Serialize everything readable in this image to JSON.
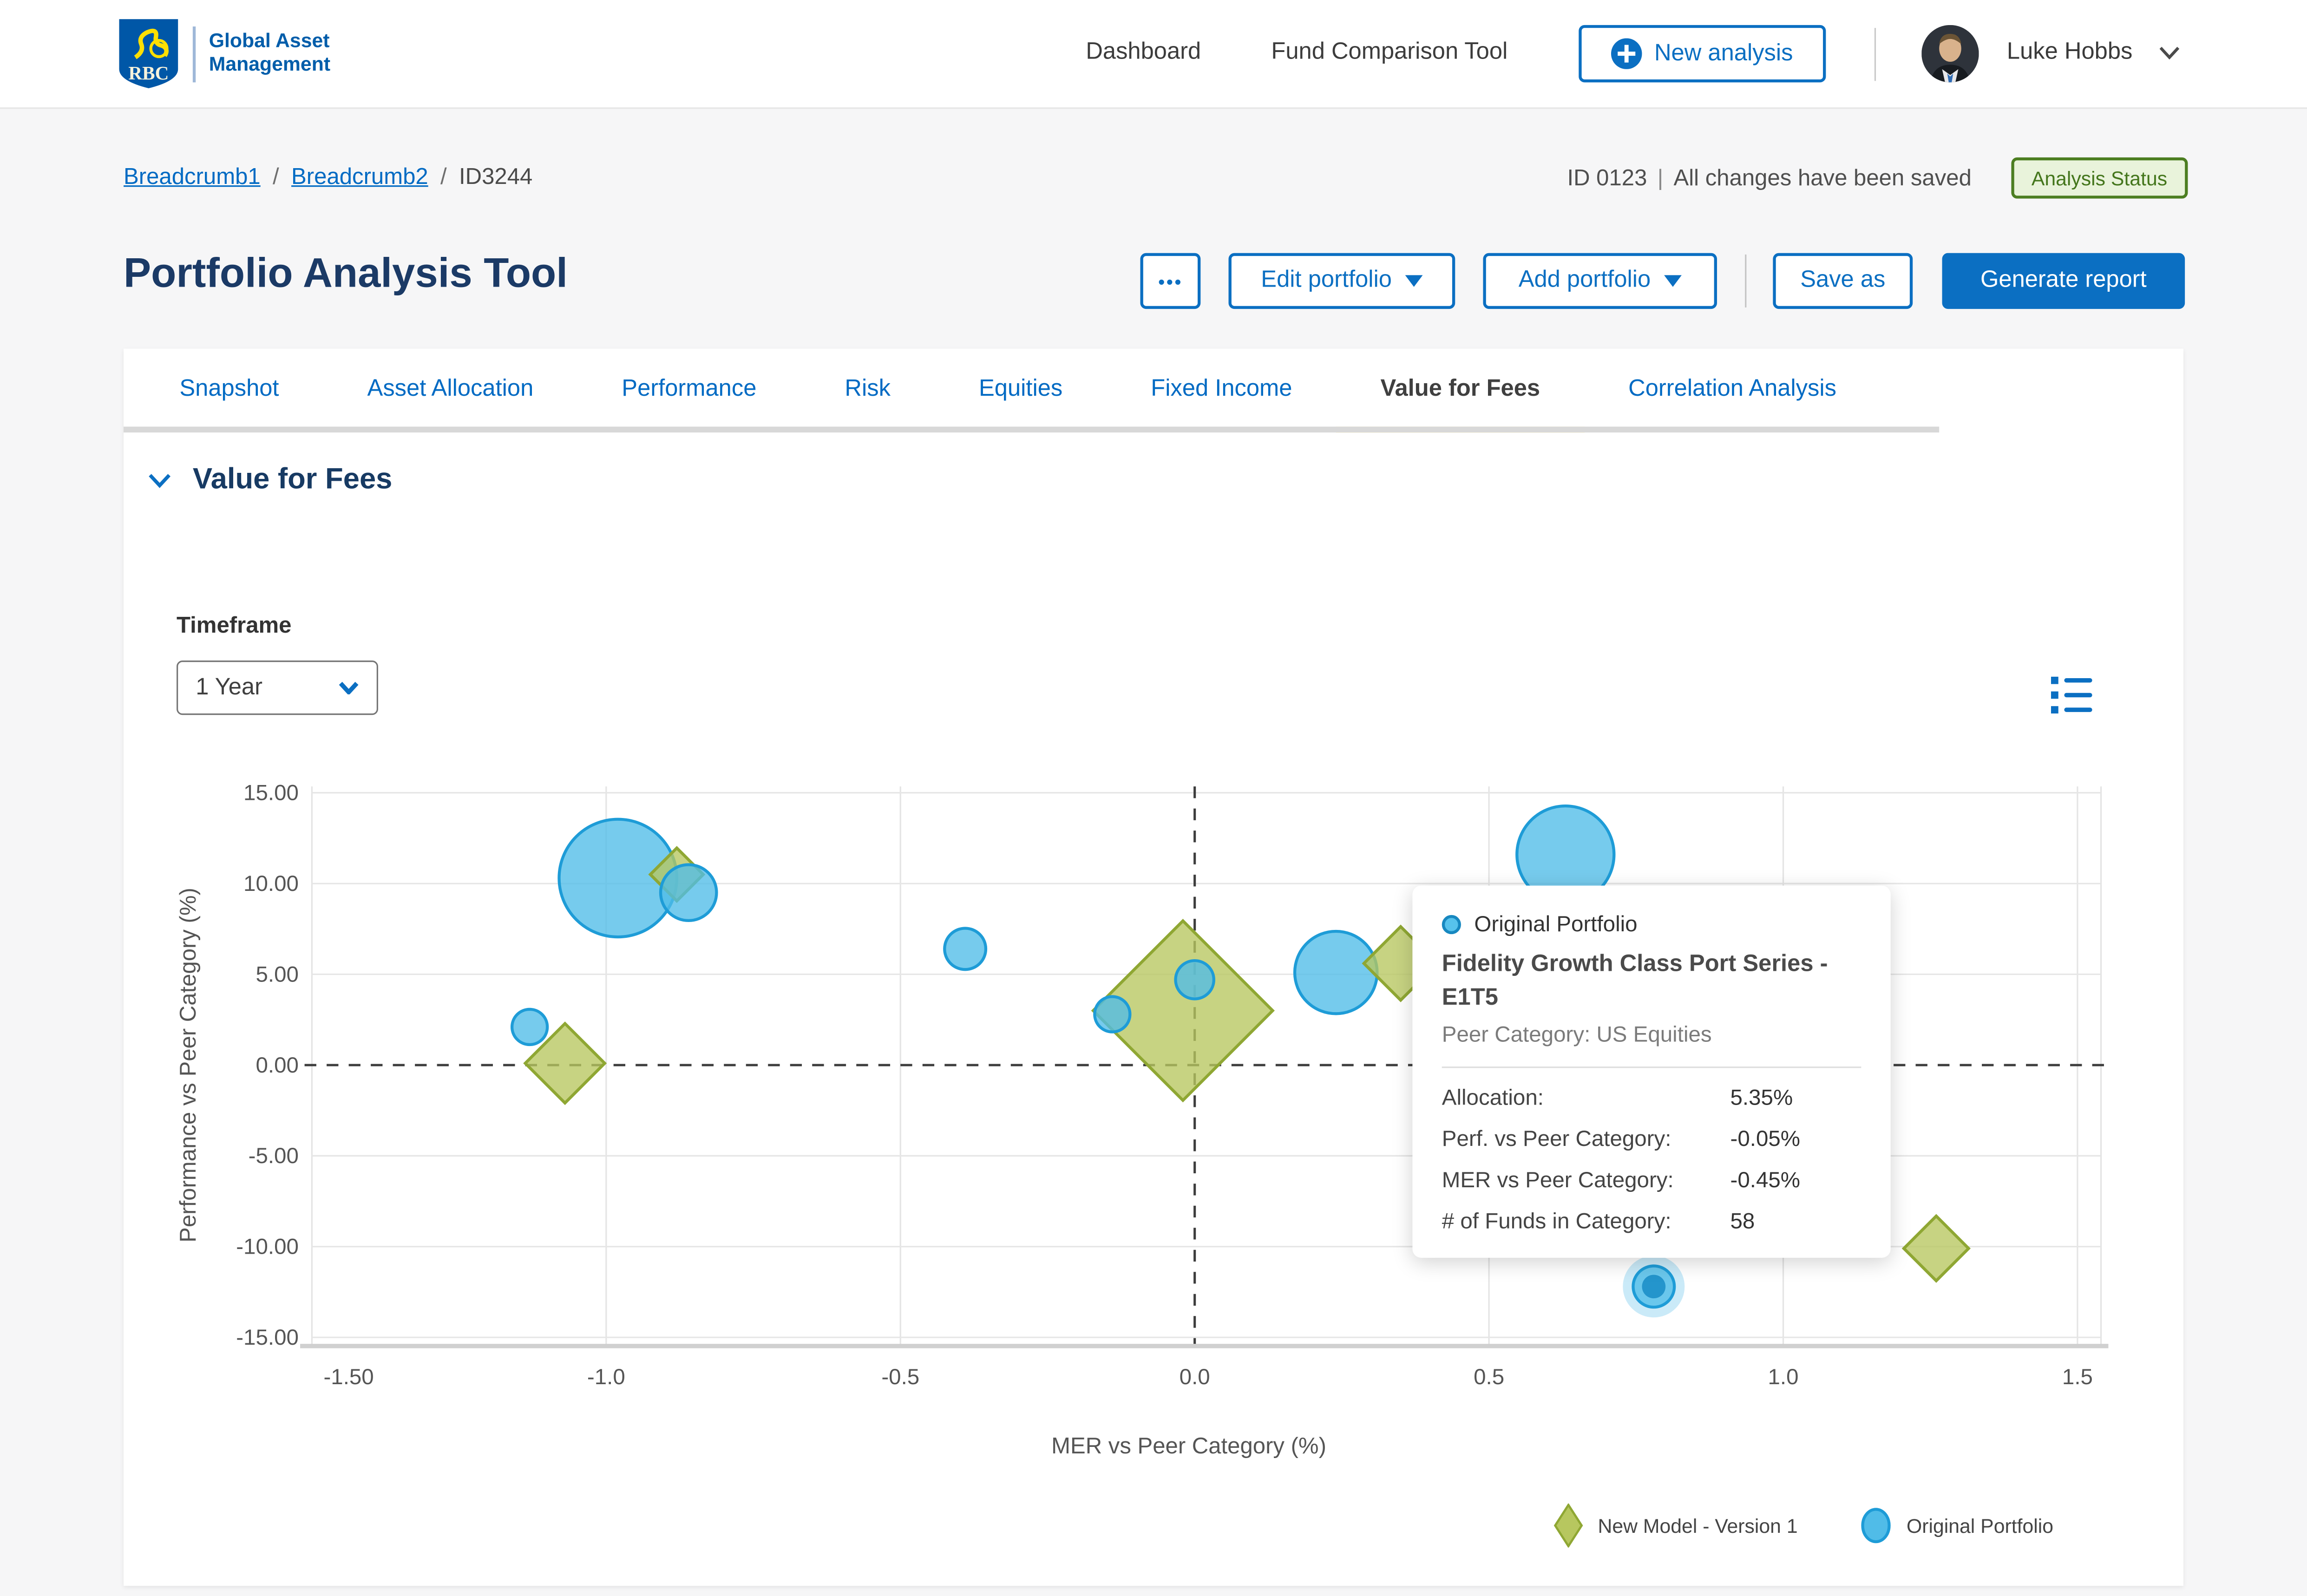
{
  "colors": {
    "accent": "#006AC3",
    "brand_blue": "#005DAA",
    "active_tab_underline": "#FEDF01",
    "heading_navy": "#1B3A66",
    "badge_text_green": "#4C7E21",
    "badge_bg_green": "#E9F3DB",
    "series_blue_fill": "#50BCE8",
    "series_blue_stroke": "#1E9CD7",
    "series_green_fill": "#B7C75F",
    "series_green_stroke": "#8FA733"
  },
  "header": {
    "logo_text": "RBC",
    "brand_line1": "Global Asset",
    "brand_line2": "Management",
    "nav": [
      {
        "label": "Dashboard"
      },
      {
        "label": "Fund Comparison Tool"
      }
    ],
    "new_analysis": "New analysis",
    "user_name": "Luke Hobbs"
  },
  "breadcrumb": {
    "separator": "/",
    "items": [
      {
        "label": "Breadcrumb1"
      },
      {
        "label": "Breadcrumb2"
      }
    ],
    "current": "ID3244"
  },
  "status": {
    "id_text": "ID 0123",
    "divider": "|",
    "saved_text": "All changes have been saved",
    "badge": "Analysis Status"
  },
  "page": {
    "title": "Portfolio Analysis Tool"
  },
  "actions": {
    "more": "•••",
    "edit": "Edit portfolio",
    "add": "Add portfolio",
    "save_as": "Save as",
    "generate": "Generate report"
  },
  "tabs": {
    "items": [
      {
        "label": "Snapshot"
      },
      {
        "label": "Asset Allocation"
      },
      {
        "label": "Performance"
      },
      {
        "label": "Risk"
      },
      {
        "label": "Equities"
      },
      {
        "label": "Fixed Income"
      },
      {
        "label": "Value for Fees",
        "active": true
      },
      {
        "label": "Correlation Analysis"
      }
    ]
  },
  "section": {
    "title": "Value for Fees"
  },
  "controls": {
    "timeframe_label": "Timeframe",
    "timeframe_value": "1 Year"
  },
  "tooltip": {
    "series_label": "Original Portfolio",
    "fund_name": "Fidelity Growth Class Port Series - E1T5",
    "peer_category": "Peer Category: US Equities",
    "rows": [
      {
        "label": "Allocation:",
        "value": "5.35%"
      },
      {
        "label": "Perf. vs Peer Category:",
        "value": "-0.05%"
      },
      {
        "label": "MER vs Peer Category:",
        "value": "-0.45%"
      },
      {
        "label": "# of Funds in Category:",
        "value": "58"
      }
    ]
  },
  "legend": {
    "items": [
      {
        "label": "New Model - Version 1",
        "marker": "diamond"
      },
      {
        "label": "Original Portfolio",
        "marker": "circle"
      }
    ]
  },
  "chart_data": {
    "type": "scatter",
    "title": "Value for Fees",
    "xlabel": "MER vs Peer Category (%)",
    "ylabel": "Performance vs Peer Category (%)",
    "xlim": [
      -1.5,
      1.54
    ],
    "ylim": [
      -15.5,
      15.35
    ],
    "grid": true,
    "zero_lines": "dashed",
    "legend_position": "bottom-right",
    "xticks": [
      {
        "v": -1.5,
        "label": "-1.50",
        "label_dx": 25
      },
      {
        "v": -1.0,
        "label": "-1.0"
      },
      {
        "v": -0.5,
        "label": "-0.5"
      },
      {
        "v": 0.0,
        "label": "0.0"
      },
      {
        "v": 0.5,
        "label": "0.5"
      },
      {
        "v": 1.0,
        "label": "1.0"
      },
      {
        "v": 1.5,
        "label": "1.5"
      }
    ],
    "yticks": [
      {
        "v": 15,
        "label": "15.00"
      },
      {
        "v": 10,
        "label": "10.00"
      },
      {
        "v": 5,
        "label": "5.00"
      },
      {
        "v": 0,
        "label": "0.00"
      },
      {
        "v": -5,
        "label": "-5.00"
      },
      {
        "v": -10,
        "label": "-10.00"
      },
      {
        "v": -15,
        "label": "-15.00"
      }
    ],
    "series": [
      {
        "name": "Original Portfolio",
        "marker": "circle",
        "fill": "#50BCE8",
        "stroke": "#1E9CD7",
        "points": [
          {
            "x": -0.98,
            "y": 10.3,
            "size": 40,
            "layer": 0
          },
          {
            "x": 0.24,
            "y": 5.1,
            "size": 28,
            "layer": 0
          },
          {
            "x": 0.63,
            "y": 11.6,
            "size": 33,
            "layer": 0
          },
          {
            "x": -0.86,
            "y": 9.5,
            "size": 19,
            "layer": 2
          },
          {
            "x": -1.13,
            "y": 2.1,
            "size": 12,
            "layer": 2
          },
          {
            "x": -0.39,
            "y": 6.4,
            "size": 14,
            "layer": 2
          },
          {
            "x": -0.14,
            "y": 2.8,
            "size": 12,
            "layer": 2
          },
          {
            "x": 0.0,
            "y": 4.7,
            "size": 13,
            "layer": 2
          },
          {
            "x": 0.78,
            "y": -12.2,
            "size": 14,
            "layer": 2,
            "halo": true
          }
        ]
      },
      {
        "name": "New Model - Version 1",
        "marker": "diamond",
        "fill": "#B7C75F",
        "stroke": "#8FA733",
        "points": [
          {
            "x": -0.88,
            "y": 10.5,
            "size": 18,
            "layer": 1
          },
          {
            "x": -1.07,
            "y": 0.1,
            "size": 27,
            "layer": 1
          },
          {
            "x": -0.02,
            "y": 3.0,
            "size": 61,
            "layer": 1
          },
          {
            "x": 0.35,
            "y": 5.6,
            "size": 25,
            "layer": 1
          },
          {
            "x": 1.26,
            "y": -10.1,
            "size": 22,
            "layer": 1
          }
        ]
      }
    ]
  }
}
